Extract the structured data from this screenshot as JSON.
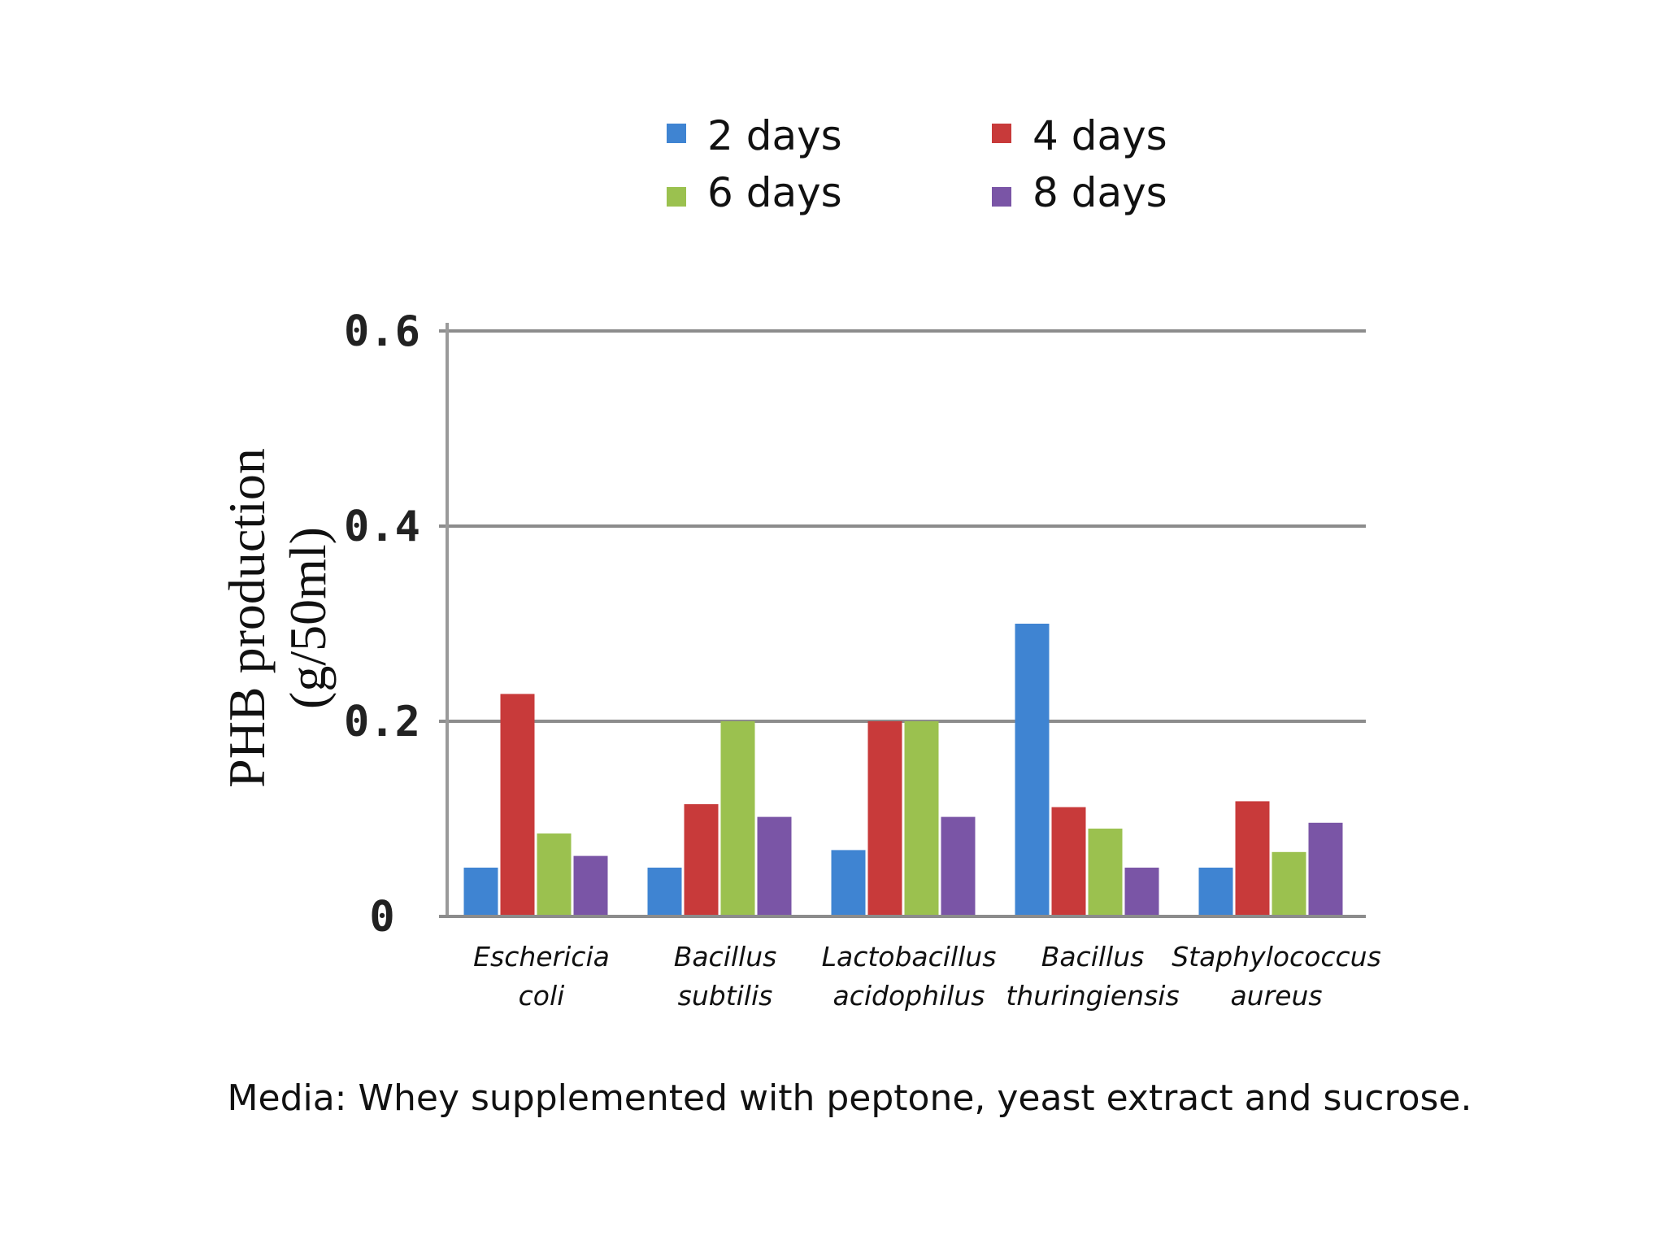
{
  "chart_data": {
    "type": "bar",
    "categories": [
      [
        "Eschericia",
        "coli"
      ],
      [
        "Bacillus",
        "subtilis"
      ],
      [
        "Lactobacillus",
        "acidophilus"
      ],
      [
        "Bacillus",
        "thuringiensis"
      ],
      [
        "Staphylococcus",
        "aureus"
      ]
    ],
    "series": [
      {
        "name": "2 days",
        "color": "#3f84d2",
        "values": [
          0.05,
          0.05,
          0.068,
          0.3,
          0.05
        ]
      },
      {
        "name": "4 days",
        "color": "#c83a3a",
        "values": [
          0.228,
          0.115,
          0.2,
          0.112,
          0.118
        ]
      },
      {
        "name": "6 days",
        "color": "#9bc14f",
        "values": [
          0.085,
          0.2,
          0.2,
          0.09,
          0.066
        ]
      },
      {
        "name": "8 days",
        "color": "#7a55a6",
        "values": [
          0.062,
          0.102,
          0.102,
          0.05,
          0.096
        ]
      }
    ],
    "ylabel": [
      "PHB production",
      "(g/50ml)"
    ],
    "xlabel": "",
    "ylim": [
      0,
      0.6
    ],
    "yticks": [
      0,
      0.2,
      0.4,
      0.6
    ],
    "ytick_labels": [
      "0",
      "0.2",
      "0.4",
      "0.6"
    ],
    "grid": true,
    "legend_position": "top-center",
    "caption": "Media: Whey supplemented with peptone, yeast extract and sucrose."
  }
}
